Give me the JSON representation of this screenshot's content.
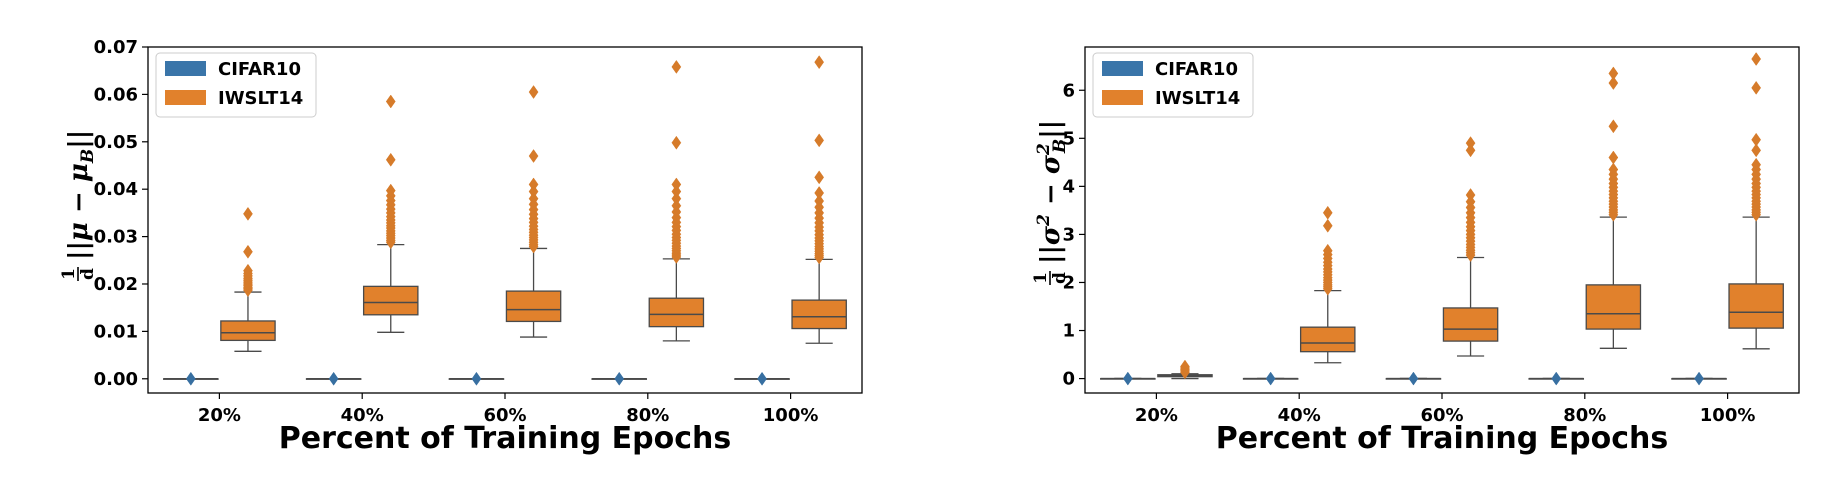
{
  "chart_data": [
    {
      "type": "box",
      "xlabel": "Percent of Training Epochs",
      "ylabel": "1/d ||μ − μB||",
      "categories": [
        "20%",
        "40%",
        "60%",
        "80%",
        "100%"
      ],
      "ylim": [
        -0.003,
        0.07
      ],
      "yticks": [
        0.0,
        0.01,
        0.02,
        0.03,
        0.04,
        0.05,
        0.06,
        0.07
      ],
      "ytick_labels": [
        "0.00",
        "0.01",
        "0.02",
        "0.03",
        "0.04",
        "0.05",
        "0.06",
        "0.07"
      ],
      "legend_position": "top-left",
      "grid": false,
      "series": [
        {
          "name": "CIFAR10",
          "color": "#3a75a9",
          "boxes": [
            {
              "whislo": 0,
              "q1": 0,
              "med": 0,
              "q3": 0,
              "whishi": 0,
              "fliers": [
                0
              ]
            },
            {
              "whislo": 0,
              "q1": 0,
              "med": 0,
              "q3": 0,
              "whishi": 0,
              "fliers": [
                0
              ]
            },
            {
              "whislo": 0,
              "q1": 0,
              "med": 0,
              "q3": 0,
              "whishi": 0,
              "fliers": [
                0
              ]
            },
            {
              "whislo": 0,
              "q1": 0,
              "med": 0,
              "q3": 0,
              "whishi": 0,
              "fliers": [
                0
              ]
            },
            {
              "whislo": 0,
              "q1": 0,
              "med": 0,
              "q3": 0,
              "whishi": 0,
              "fliers": [
                0
              ]
            }
          ]
        },
        {
          "name": "IWSLT14",
          "color": "#e1812c",
          "boxes": [
            {
              "whislo": 0.0058,
              "q1": 0.0081,
              "med": 0.0097,
              "q3": 0.0122,
              "whishi": 0.0183,
              "fliers": [
                0.0187,
                0.019,
                0.0193,
                0.0197,
                0.02,
                0.0204,
                0.0208,
                0.0212,
                0.0217,
                0.0222,
                0.0228,
                0.0268,
                0.0348
              ]
            },
            {
              "whislo": 0.0098,
              "q1": 0.0135,
              "med": 0.0161,
              "q3": 0.0195,
              "whishi": 0.0283,
              "fliers": [
                0.0288,
                0.0292,
                0.0297,
                0.0302,
                0.0307,
                0.0312,
                0.0318,
                0.0323,
                0.0329,
                0.0335,
                0.0342,
                0.035,
                0.0358,
                0.0367,
                0.0376,
                0.0386,
                0.0397,
                0.0462,
                0.0585
              ]
            },
            {
              "whislo": 0.0088,
              "q1": 0.0121,
              "med": 0.0146,
              "q3": 0.0185,
              "whishi": 0.0275,
              "fliers": [
                0.0279,
                0.0283,
                0.0288,
                0.0293,
                0.0298,
                0.0303,
                0.0309,
                0.0315,
                0.0322,
                0.033,
                0.0338,
                0.0347,
                0.0357,
                0.0368,
                0.038,
                0.0395,
                0.041,
                0.047,
                0.0605
              ]
            },
            {
              "whislo": 0.008,
              "q1": 0.011,
              "med": 0.0136,
              "q3": 0.017,
              "whishi": 0.0253,
              "fliers": [
                0.0257,
                0.0261,
                0.0265,
                0.027,
                0.0275,
                0.028,
                0.0286,
                0.0292,
                0.0298,
                0.0305,
                0.0313,
                0.0321,
                0.033,
                0.034,
                0.0352,
                0.0365,
                0.038,
                0.0395,
                0.041,
                0.0498,
                0.0658
              ]
            },
            {
              "whislo": 0.0075,
              "q1": 0.0106,
              "med": 0.0131,
              "q3": 0.0166,
              "whishi": 0.0252,
              "fliers": [
                0.0256,
                0.026,
                0.0264,
                0.0269,
                0.0274,
                0.0279,
                0.0285,
                0.0291,
                0.0297,
                0.0304,
                0.0312,
                0.032,
                0.0329,
                0.0339,
                0.035,
                0.0362,
                0.0375,
                0.0392,
                0.0425,
                0.0503,
                0.0668
              ]
            }
          ]
        }
      ]
    },
    {
      "type": "box",
      "xlabel": "Percent of Training Epochs",
      "ylabel": "1/d ||σ² − σB²||",
      "categories": [
        "20%",
        "40%",
        "60%",
        "80%",
        "100%"
      ],
      "ylim": [
        -0.3,
        6.9
      ],
      "yticks": [
        0,
        1,
        2,
        3,
        4,
        5,
        6
      ],
      "ytick_labels": [
        "0",
        "1",
        "2",
        "3",
        "4",
        "5",
        "6"
      ],
      "legend_position": "top-left",
      "grid": false,
      "series": [
        {
          "name": "CIFAR10",
          "color": "#3a75a9",
          "boxes": [
            {
              "whislo": 0,
              "q1": 0,
              "med": 0,
              "q3": 0,
              "whishi": 0,
              "fliers": [
                0
              ]
            },
            {
              "whislo": 0,
              "q1": 0,
              "med": 0,
              "q3": 0,
              "whishi": 0,
              "fliers": [
                0
              ]
            },
            {
              "whislo": 0,
              "q1": 0,
              "med": 0,
              "q3": 0,
              "whishi": 0,
              "fliers": [
                0
              ]
            },
            {
              "whislo": 0,
              "q1": 0,
              "med": 0,
              "q3": 0,
              "whishi": 0,
              "fliers": [
                0
              ]
            },
            {
              "whislo": 0,
              "q1": 0,
              "med": 0,
              "q3": 0,
              "whishi": 0,
              "fliers": [
                0
              ]
            }
          ]
        },
        {
          "name": "IWSLT14",
          "color": "#e1812c",
          "boxes": [
            {
              "whislo": 0.0,
              "q1": 0.04,
              "med": 0.06,
              "q3": 0.08,
              "whishi": 0.1,
              "fliers": [
                0.13,
                0.16,
                0.19,
                0.22,
                0.25
              ]
            },
            {
              "whislo": 0.33,
              "q1": 0.56,
              "med": 0.74,
              "q3": 1.07,
              "whishi": 1.83,
              "fliers": [
                1.87,
                1.91,
                1.95,
                2.0,
                2.05,
                2.1,
                2.16,
                2.22,
                2.28,
                2.35,
                2.42,
                2.5,
                2.58,
                2.66,
                3.18,
                3.45
              ]
            },
            {
              "whislo": 0.47,
              "q1": 0.78,
              "med": 1.03,
              "q3": 1.47,
              "whishi": 2.52,
              "fliers": [
                2.57,
                2.62,
                2.67,
                2.73,
                2.79,
                2.86,
                2.93,
                3.0,
                3.08,
                3.16,
                3.25,
                3.35,
                3.45,
                3.56,
                3.68,
                3.82,
                4.75,
                4.9
              ]
            },
            {
              "whislo": 0.63,
              "q1": 1.03,
              "med": 1.35,
              "q3": 1.95,
              "whishi": 3.36,
              "fliers": [
                3.41,
                3.46,
                3.51,
                3.57,
                3.63,
                3.69,
                3.76,
                3.83,
                3.9,
                3.98,
                4.06,
                4.15,
                4.25,
                4.35,
                4.6,
                5.25,
                6.15,
                6.35
              ]
            },
            {
              "whislo": 0.62,
              "q1": 1.05,
              "med": 1.38,
              "q3": 1.97,
              "whishi": 3.36,
              "fliers": [
                3.41,
                3.46,
                3.51,
                3.57,
                3.63,
                3.69,
                3.76,
                3.83,
                3.9,
                3.98,
                4.06,
                4.15,
                4.25,
                4.35,
                4.45,
                4.75,
                4.97,
                6.05,
                6.65
              ]
            }
          ]
        }
      ]
    }
  ]
}
